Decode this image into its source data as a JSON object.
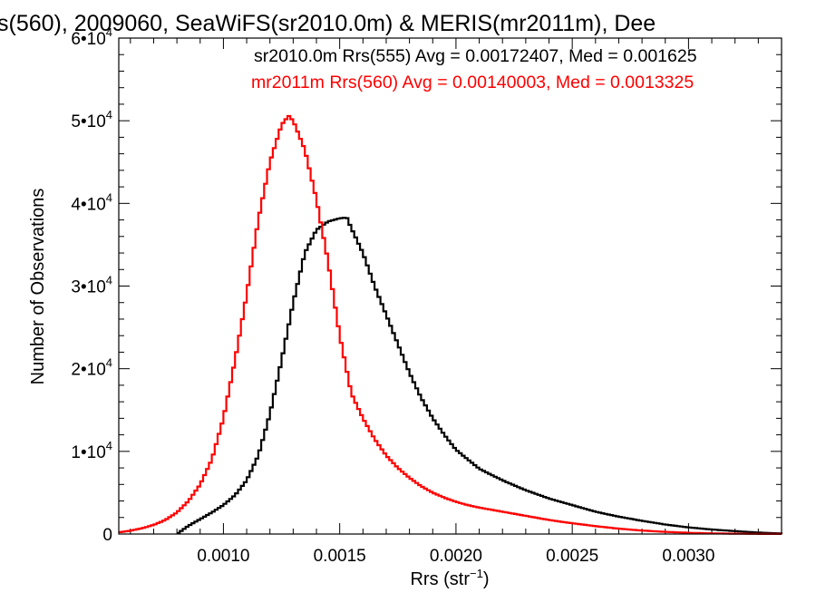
{
  "chart_data": {
    "type": "line",
    "title": "s(560), 2009060, SeaWiFS(sr2010.0m) & MERIS(mr2011m), Dee",
    "xlabel": "Rrs (str",
    "xlabel_sup": "−1",
    "xlabel_close": ")",
    "ylabel": "Number of Observations",
    "xlim": [
      0.00055,
      0.0034
    ],
    "ylim": [
      0,
      60000
    ],
    "x_ticks": [
      0.001,
      0.0015,
      0.002,
      0.0025,
      0.003
    ],
    "x_tick_labels": [
      "0.0010",
      "0.0015",
      "0.0020",
      "0.0025",
      "0.0030"
    ],
    "y_ticks": [
      {
        "value": 0,
        "mantissa": "0",
        "sup": ""
      },
      {
        "value": 10000,
        "mantissa": "1•10",
        "sup": "4"
      },
      {
        "value": 20000,
        "mantissa": "2•10",
        "sup": "4"
      },
      {
        "value": 30000,
        "mantissa": "3•10",
        "sup": "4"
      },
      {
        "value": 40000,
        "mantissa": "4•10",
        "sup": "4"
      },
      {
        "value": 50000,
        "mantissa": "5•10",
        "sup": "4"
      },
      {
        "value": 60000,
        "mantissa": "6•10",
        "sup": "4"
      }
    ],
    "legend": [
      {
        "text": "sr2010.0m Rrs(555) Avg = 0.00172407, Med = 0.001625",
        "color": "#000000"
      },
      {
        "text": "mr2011m Rrs(560) Avg = 0.00140003, Med = 0.0013325",
        "color": "#ff0000"
      }
    ],
    "series": [
      {
        "color": "#000000",
        "x": [
          0.0008,
          0.00085,
          0.0009,
          0.00095,
          0.001,
          0.00105,
          0.0011,
          0.00115,
          0.0012,
          0.00125,
          0.0013,
          0.00135,
          0.0014,
          0.00145,
          0.0015,
          0.00153,
          0.00155,
          0.0016,
          0.00165,
          0.0017,
          0.00175,
          0.0018,
          0.00185,
          0.0019,
          0.00195,
          0.002,
          0.0021,
          0.0022,
          0.0023,
          0.0024,
          0.0025,
          0.0026,
          0.0027,
          0.0028,
          0.0029,
          0.003,
          0.0031,
          0.0032,
          0.0033,
          0.0034
        ],
        "values": [
          0,
          1000,
          1800,
          2600,
          3500,
          4700,
          6500,
          9500,
          14500,
          21000,
          28000,
          34000,
          36800,
          37800,
          38200,
          38300,
          37000,
          34000,
          30000,
          26500,
          23000,
          19500,
          16500,
          14000,
          12000,
          10200,
          7900,
          6500,
          5300,
          4300,
          3500,
          2700,
          2100,
          1600,
          1150,
          800,
          550,
          350,
          180,
          60
        ]
      },
      {
        "color": "#ff0000",
        "x": [
          0.00055,
          0.0006,
          0.00065,
          0.0007,
          0.00075,
          0.0008,
          0.00085,
          0.0009,
          0.00095,
          0.001,
          0.00105,
          0.0011,
          0.00115,
          0.0012,
          0.00125,
          0.00128,
          0.0013,
          0.00135,
          0.0014,
          0.00145,
          0.0015,
          0.00155,
          0.0016,
          0.00165,
          0.0017,
          0.00175,
          0.0018,
          0.00185,
          0.0019,
          0.00195,
          0.002,
          0.00205,
          0.0021,
          0.0022,
          0.0023,
          0.0024,
          0.0025,
          0.0026,
          0.0027,
          0.0028,
          0.0029,
          0.003,
          0.0031,
          0.0032,
          0.0033,
          0.0034
        ],
        "values": [
          200,
          400,
          700,
          1100,
          1700,
          2600,
          4000,
          6000,
          9000,
          14000,
          21000,
          29000,
          38000,
          45000,
          49500,
          50600,
          50000,
          46500,
          40500,
          33000,
          24000,
          17000,
          14000,
          11500,
          9500,
          8000,
          6800,
          5800,
          5000,
          4400,
          3900,
          3500,
          3200,
          2700,
          2200,
          1700,
          1300,
          950,
          650,
          420,
          260,
          150,
          80,
          40,
          15,
          5
        ]
      }
    ]
  }
}
